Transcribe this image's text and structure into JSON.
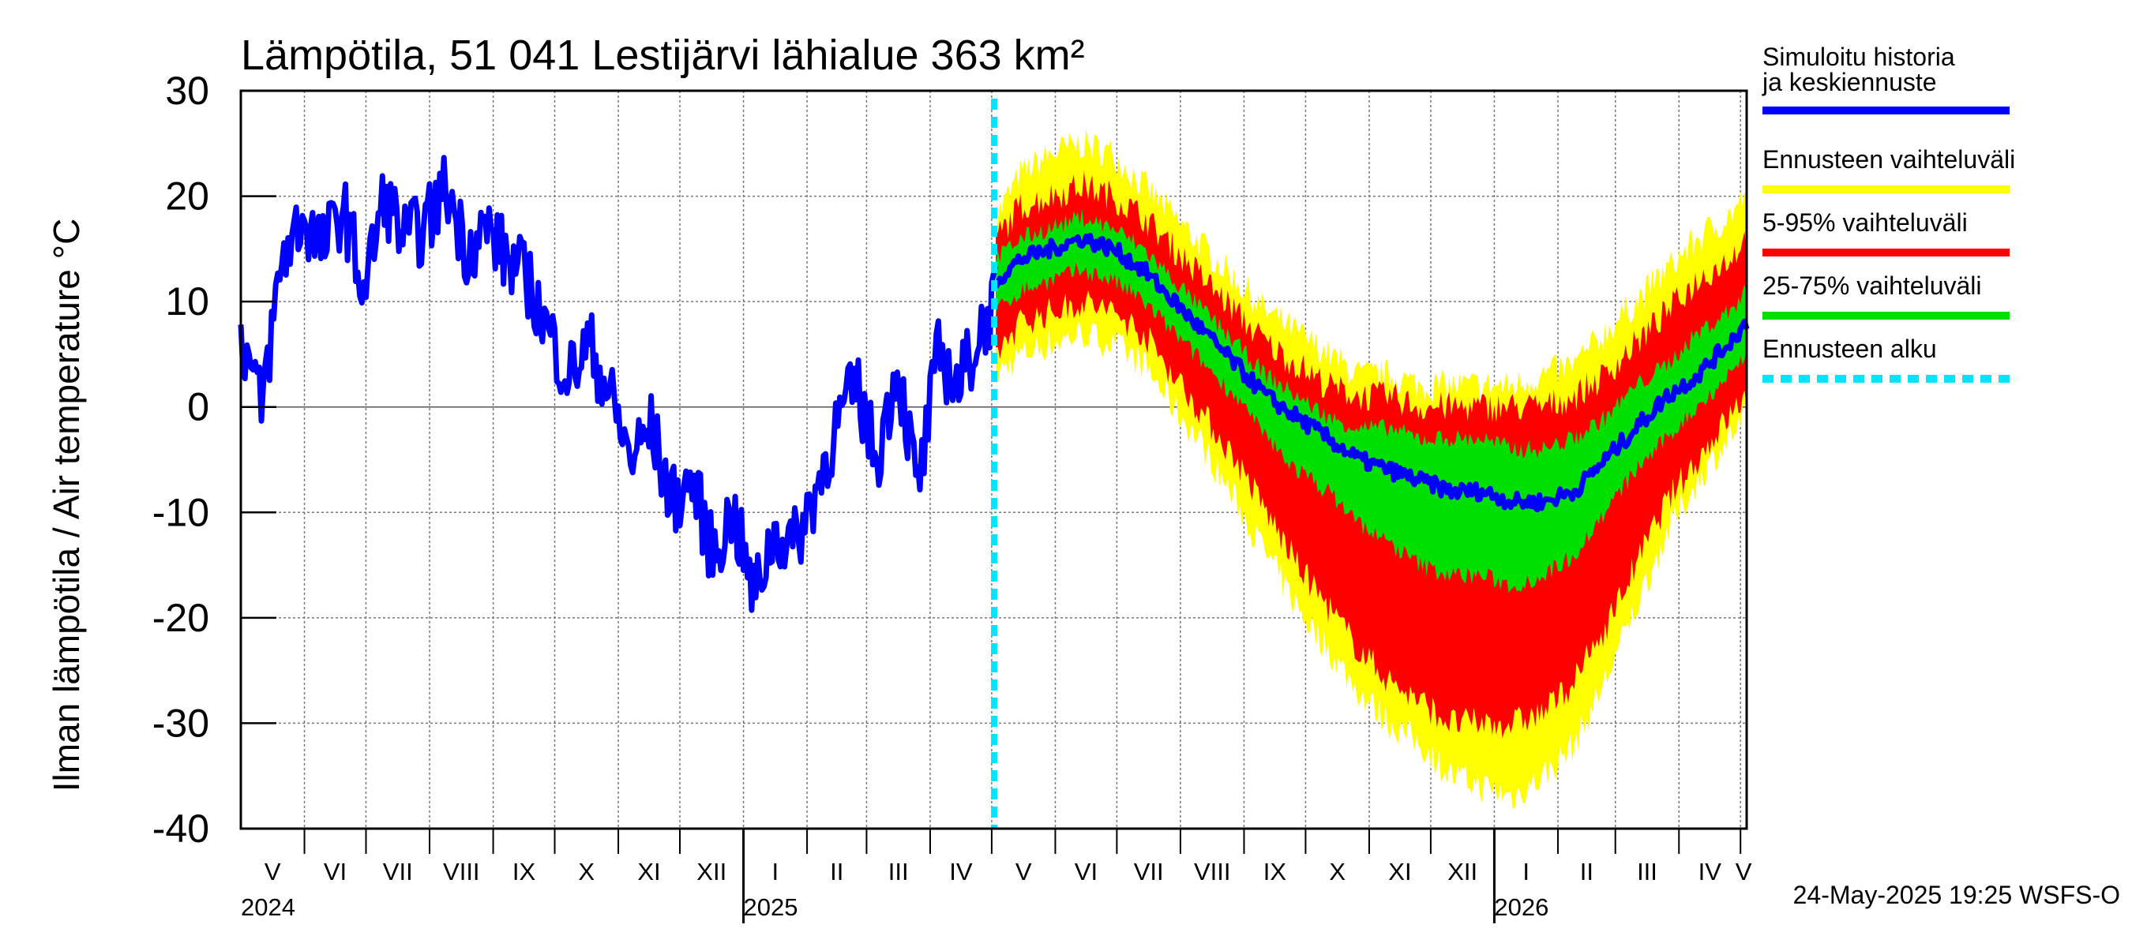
{
  "chart_data": {
    "type": "area",
    "title": "Lämpötila, 51 041 Lestijärvi lähialue 363 km²",
    "ylabel": "Ilman lämpötila / Air temperature   °C",
    "ylim": [
      -40,
      30
    ],
    "yticks": [
      "30",
      "20",
      "10",
      "0",
      "-10",
      "-20",
      "-30",
      "-40"
    ],
    "grid": true,
    "months": [
      "V",
      "VI",
      "VII",
      "VIII",
      "IX",
      "X",
      "XI",
      "XII",
      "I",
      "II",
      "III",
      "IV",
      "V",
      "VI",
      "VII",
      "VIII",
      "IX",
      "X",
      "XI",
      "XII",
      "I",
      "II",
      "III",
      "IV",
      "V"
    ],
    "years": [
      "2024",
      "2025",
      "2026"
    ],
    "forecast_start": "2025-05-24",
    "history": {
      "name": "Simuloitu historia ja keskiennuste",
      "color": "#0000ff",
      "x_day": [
        0,
        10,
        20,
        30,
        40,
        50,
        60,
        70,
        80,
        90,
        100,
        110,
        120,
        130,
        140,
        150,
        160,
        170,
        180,
        190,
        200,
        210,
        220,
        230,
        240,
        250,
        260,
        270,
        280,
        290,
        300,
        310,
        320,
        330,
        340,
        350,
        360,
        365,
        368
      ],
      "values": [
        7,
        0,
        14,
        18,
        15,
        19,
        11,
        20,
        16,
        17,
        21,
        15,
        17,
        14,
        12,
        7,
        3,
        6,
        1,
        -5,
        -2,
        -9,
        -7,
        -14,
        -10,
        -18,
        -12,
        -13,
        -8,
        -2,
        2,
        -5,
        4,
        -8,
        5,
        2,
        7,
        9,
        10
      ]
    },
    "forecast": {
      "x_day": [
        368,
        380,
        395,
        410,
        425,
        440,
        455,
        470,
        485,
        500,
        515,
        530,
        545,
        560,
        575,
        590,
        605,
        620,
        635,
        650,
        665,
        680,
        695,
        710,
        725,
        734
      ],
      "median": [
        12,
        14,
        15,
        16,
        15,
        13,
        10,
        7,
        4,
        1,
        -1,
        -3,
        -5,
        -6,
        -7,
        -8,
        -8,
        -9,
        -9,
        -8,
        -5,
        -2,
        1,
        3,
        6,
        8
      ],
      "p25": [
        9,
        11,
        12,
        13,
        12,
        10,
        7,
        4,
        1,
        -3,
        -6,
        -8,
        -11,
        -13,
        -15,
        -16,
        -16,
        -17,
        -16,
        -14,
        -10,
        -6,
        -3,
        0,
        3,
        5
      ],
      "p75": [
        14,
        16,
        17,
        18,
        17,
        15,
        12,
        9,
        6,
        3,
        1,
        -1,
        -2,
        -2,
        -3,
        -3,
        -3,
        -4,
        -4,
        -3,
        -1,
        2,
        4,
        7,
        9,
        11
      ],
      "p5": [
        5,
        8,
        9,
        10,
        9,
        7,
        3,
        -1,
        -5,
        -10,
        -15,
        -19,
        -23,
        -26,
        -28,
        -30,
        -30,
        -30,
        -29,
        -26,
        -21,
        -15,
        -9,
        -5,
        -1,
        1
      ],
      "p95": [
        16,
        19,
        20,
        21,
        20,
        18,
        15,
        12,
        9,
        6,
        4,
        2,
        1,
        1,
        0,
        0,
        0,
        0,
        0,
        1,
        3,
        6,
        9,
        12,
        14,
        16
      ],
      "min": [
        3,
        5,
        6,
        7,
        6,
        4,
        0,
        -4,
        -9,
        -14,
        -19,
        -23,
        -27,
        -30,
        -32,
        -35,
        -36,
        -37,
        -35,
        -32,
        -26,
        -19,
        -12,
        -7,
        -3,
        -1
      ],
      "max": [
        18,
        22,
        24,
        25,
        24,
        21,
        18,
        15,
        12,
        9,
        7,
        5,
        3,
        3,
        2,
        2,
        2,
        2,
        3,
        4,
        7,
        10,
        13,
        16,
        18,
        20
      ]
    },
    "legend": [
      {
        "label": "Simuloitu historia ja keskiennuste",
        "color": "#0000ff"
      },
      {
        "label": "Ennusteen vaihteluväli",
        "color": "#ffff00"
      },
      {
        "label": "5-95% vaihteluväli",
        "color": "#ff0000"
      },
      {
        "label": "25-75% vaihteluväli",
        "color": "#00e000"
      },
      {
        "label": "Ennusteen alku",
        "color": "#00e5ff"
      }
    ],
    "footer": "24-May-2025 19:25 WSFS-O"
  }
}
